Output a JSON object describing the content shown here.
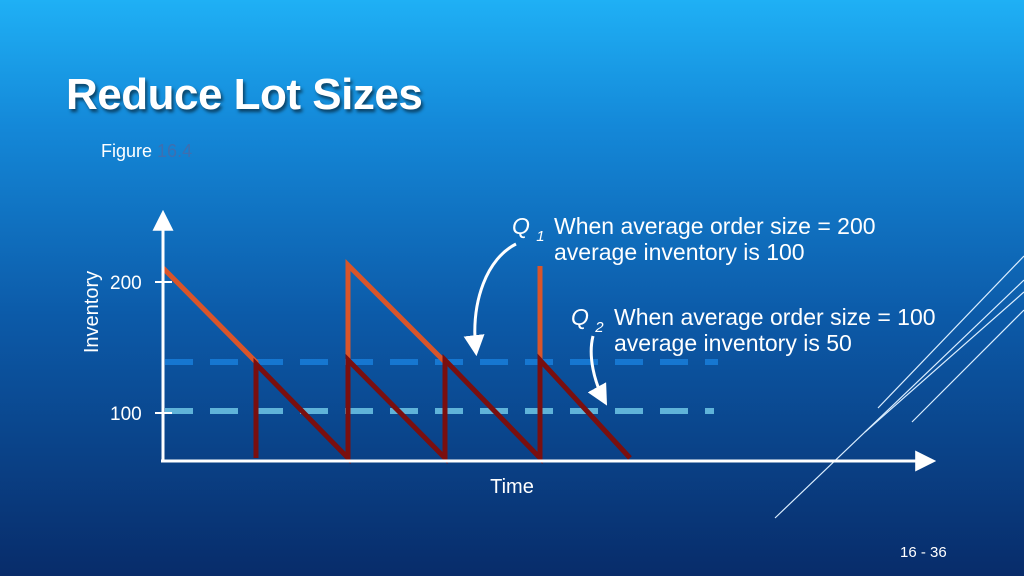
{
  "slide": {
    "title": "Reduce Lot Sizes",
    "figure_label": "Figure",
    "figure_number": "16.4",
    "page_number": "16 - 36"
  },
  "colors": {
    "q1_line": "#d9552a",
    "q2_line": "#7a0f0f",
    "q1_avg_dash": "#1677d1",
    "q2_avg_dash": "#5fb3d9",
    "axis": "#ffffff"
  },
  "chart_data": {
    "type": "line",
    "xlabel": "Time",
    "ylabel": "Inventory",
    "y_ticks": [
      "200",
      "100"
    ],
    "series": [
      {
        "name": "Q1",
        "annotation": [
          "When average order size = 200",
          "average inventory is 100"
        ],
        "pattern": "sawtooth",
        "max": 200,
        "average": 100
      },
      {
        "name": "Q2",
        "annotation": [
          "When average order size = 100",
          "average inventory is 50"
        ],
        "pattern": "sawtooth",
        "max": 100,
        "average": 50
      }
    ],
    "grid": false
  }
}
